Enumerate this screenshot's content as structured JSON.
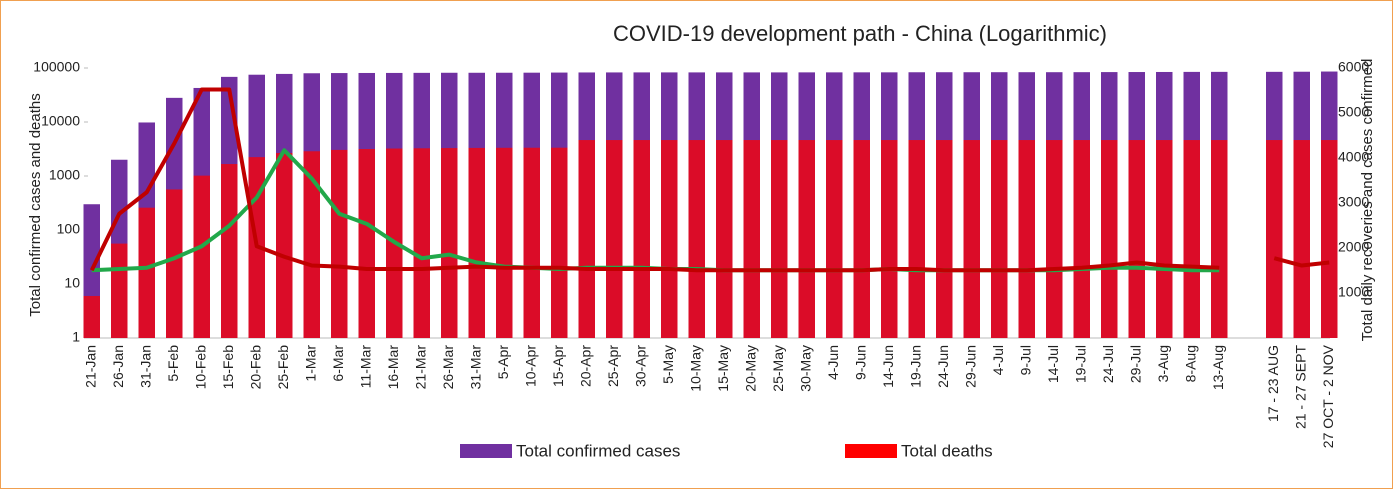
{
  "chart_data": {
    "type": "bar",
    "title": "COVID-19 development path - China (Logarithmic)",
    "y_label": "Total confirmed cases and deaths",
    "y2_label": "Total daily recoveries and cases confirmed",
    "categories": [
      "21-Jan",
      "26-Jan",
      "31-Jan",
      "5-Feb",
      "10-Feb",
      "15-Feb",
      "20-Feb",
      "25-Feb",
      "1-Mar",
      "6-Mar",
      "11-Mar",
      "16-Mar",
      "21-Mar",
      "26-Mar",
      "31-Mar",
      "5-Apr",
      "10-Apr",
      "15-Apr",
      "20-Apr",
      "25-Apr",
      "30-Apr",
      "5-May",
      "10-May",
      "15-May",
      "20-May",
      "25-May",
      "30-May",
      "4-Jun",
      "9-Jun",
      "14-Jun",
      "19-Jun",
      "24-Jun",
      "29-Jun",
      "4-Jul",
      "9-Jul",
      "14-Jul",
      "19-Jul",
      "24-Jul",
      "29-Jul",
      "3-Aug",
      "8-Aug",
      "13-Aug",
      null,
      "17 - 23 AUG",
      "21 - 27 SEPT",
      "27 OCT - 2 NOV"
    ],
    "series": [
      {
        "name": "Total confirmed cases",
        "type": "bar",
        "color": "#7030a0",
        "values": [
          300,
          2000,
          9800,
          28000,
          42700,
          68500,
          75100,
          77700,
          79900,
          80600,
          80900,
          81000,
          81300,
          81600,
          81600,
          81700,
          81900,
          82300,
          82700,
          82800,
          82900,
          82900,
          82900,
          82900,
          82900,
          82900,
          83000,
          83000,
          83100,
          83100,
          83400,
          83500,
          83500,
          83600,
          83600,
          83600,
          83700,
          84000,
          84200,
          84400,
          84700,
          84800,
          null,
          84900,
          85300,
          86000
        ]
      },
      {
        "name": "Total deaths",
        "type": "bar",
        "color": "#ff0000",
        "values": [
          6,
          56,
          259,
          564,
          1016,
          1666,
          2236,
          2663,
          2870,
          3042,
          3161,
          3226,
          3261,
          3292,
          3312,
          3329,
          3339,
          3342,
          4632,
          4632,
          4633,
          4633,
          4633,
          4633,
          4634,
          4634,
          4634,
          4634,
          4634,
          4634,
          4634,
          4634,
          4634,
          4634,
          4634,
          4634,
          4634,
          4634,
          4634,
          4634,
          4634,
          4634,
          null,
          4634,
          4634,
          4634
        ]
      },
      {
        "type": "line",
        "color": "#22a84a",
        "values": [
          18,
          19,
          20,
          30,
          50,
          120,
          400,
          3000,
          900,
          200,
          130,
          60,
          30,
          35,
          25,
          21,
          20,
          19,
          20,
          20,
          20,
          19,
          19,
          18,
          18,
          18,
          18,
          18,
          18,
          19,
          18,
          18,
          18,
          18,
          18,
          18,
          19,
          20,
          20,
          19,
          18,
          18,
          null,
          null,
          null,
          null
        ]
      },
      {
        "type": "line",
        "color": "#c00000",
        "values": [
          18,
          200,
          500,
          4000,
          40000,
          40000,
          50,
          32,
          22,
          21,
          19,
          19,
          19,
          20,
          21,
          20,
          20,
          20,
          19,
          19,
          19,
          19,
          18,
          18,
          18,
          18,
          18,
          18,
          18,
          19,
          19,
          18,
          18,
          18,
          18,
          19,
          20,
          22,
          25,
          22,
          21,
          20,
          null,
          30,
          22,
          25
        ]
      }
    ],
    "log_scale": true,
    "ylim": [
      1,
      100000
    ],
    "yticks": [
      1,
      10,
      100,
      1000,
      10000,
      100000
    ],
    "y2lim": [
      0,
      6000
    ],
    "y2ticks": [
      1000,
      2000,
      3000,
      4000,
      5000,
      6000
    ],
    "grid": false,
    "legend": "bottom"
  }
}
